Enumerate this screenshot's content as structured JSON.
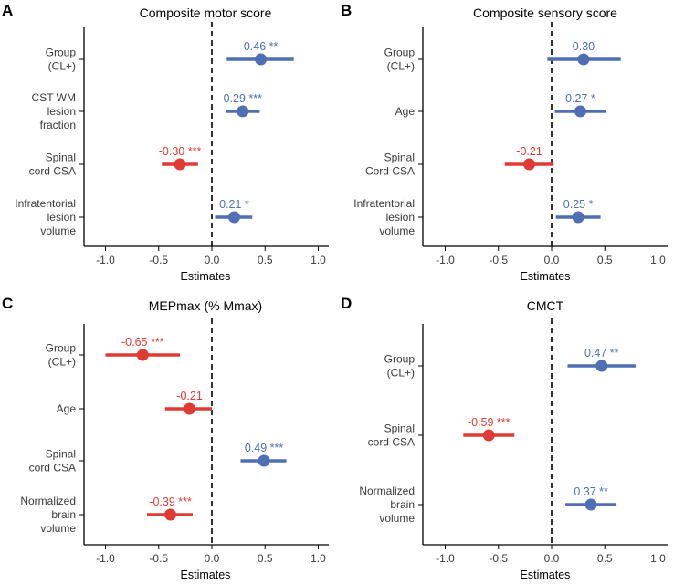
{
  "colors": {
    "negative": "#e03a34",
    "positive": "#4f6fb4",
    "axis": "#000000"
  },
  "chart_data": [
    {
      "type": "forest",
      "panel": "A",
      "title": "Composite motor score",
      "xlabel": "Estimates",
      "xlim": [
        -1.2,
        1.2
      ],
      "xticks": [
        -1.0,
        -0.5,
        0.0,
        0.5,
        1.0
      ],
      "tick_labels": [
        "-1.0",
        "-0.5",
        "0.0",
        "0.5",
        "1.0"
      ],
      "rows": [
        {
          "label": [
            "Group",
            "(CL+)"
          ],
          "estimate": 0.46,
          "ci": [
            0.14,
            0.77
          ],
          "text": "0.46 **"
        },
        {
          "label": [
            "CST WM",
            "lesion",
            "fraction"
          ],
          "estimate": 0.29,
          "ci": [
            0.13,
            0.45
          ],
          "text": "0.29 ***"
        },
        {
          "label": [
            "Spinal",
            "cord CSA"
          ],
          "estimate": -0.3,
          "ci": [
            -0.47,
            -0.13
          ],
          "text": "-0.30 ***"
        },
        {
          "label": [
            "Infratentorial",
            "lesion",
            "volume"
          ],
          "estimate": 0.21,
          "ci": [
            0.03,
            0.38
          ],
          "text": "0.21 *"
        }
      ]
    },
    {
      "type": "forest",
      "panel": "B",
      "title": "Composite sensory score",
      "xlabel": "Estimates",
      "xlim": [
        -1.2,
        1.2
      ],
      "xticks": [
        -1.0,
        -0.5,
        0.0,
        0.5,
        1.0
      ],
      "tick_labels": [
        "-1.0",
        "-0.5",
        "0.0",
        "0.5",
        "1.0"
      ],
      "rows": [
        {
          "label": [
            "Group",
            "(CL+)"
          ],
          "estimate": 0.3,
          "ci": [
            -0.04,
            0.65
          ],
          "text": "0.30"
        },
        {
          "label": [
            "Age"
          ],
          "estimate": 0.27,
          "ci": [
            0.03,
            0.51
          ],
          "text": "0.27 *"
        },
        {
          "label": [
            "Spinal",
            "Cord CSA"
          ],
          "estimate": -0.21,
          "ci": [
            -0.44,
            0.02
          ],
          "text": "-0.21"
        },
        {
          "label": [
            "Infratentorial",
            "lesion",
            "volume"
          ],
          "estimate": 0.25,
          "ci": [
            0.04,
            0.46
          ],
          "text": "0.25 *"
        }
      ]
    },
    {
      "type": "forest",
      "panel": "C",
      "title": "MEPmax (% Mmax)",
      "xlabel": "Estimates",
      "xlim": [
        -1.2,
        1.2
      ],
      "xticks": [
        -1.0,
        -0.5,
        0.0,
        0.5,
        1.0
      ],
      "tick_labels": [
        "-1.0",
        "-0.5",
        "0.0",
        "0.5",
        "1.0"
      ],
      "rows": [
        {
          "label": [
            "Group",
            "(CL+)"
          ],
          "estimate": -0.65,
          "ci": [
            -1.0,
            -0.3
          ],
          "text": "-0.65 ***"
        },
        {
          "label": [
            "Age"
          ],
          "estimate": -0.21,
          "ci": [
            -0.44,
            0.0
          ],
          "text": "-0.21"
        },
        {
          "label": [
            "Spinal",
            "cord CSA"
          ],
          "estimate": 0.49,
          "ci": [
            0.27,
            0.7
          ],
          "text": "0.49 ***"
        },
        {
          "label": [
            "Normalized",
            "brain",
            "volume"
          ],
          "estimate": -0.39,
          "ci": [
            -0.61,
            -0.18
          ],
          "text": "-0.39 ***"
        }
      ]
    },
    {
      "type": "forest",
      "panel": "D",
      "title": "CMCT",
      "xlabel": "Estimates",
      "xlim": [
        -1.2,
        1.2
      ],
      "xticks": [
        -1.0,
        -0.5,
        0.0,
        0.5,
        1.0
      ],
      "tick_labels": [
        "-1.0",
        "-0.5",
        "0.0",
        "0.5",
        "1.0"
      ],
      "rows": [
        {
          "label": [
            "Group",
            "(CL+)"
          ],
          "estimate": 0.47,
          "ci": [
            0.15,
            0.79
          ],
          "text": "0.47 **"
        },
        {
          "label": [
            "Spinal",
            "cord CSA"
          ],
          "estimate": -0.59,
          "ci": [
            -0.83,
            -0.35
          ],
          "text": "-0.59 ***"
        },
        {
          "label": [
            "Normalized",
            "brain",
            "volume"
          ],
          "estimate": 0.37,
          "ci": [
            0.13,
            0.61
          ],
          "text": "0.37 **"
        }
      ]
    }
  ]
}
